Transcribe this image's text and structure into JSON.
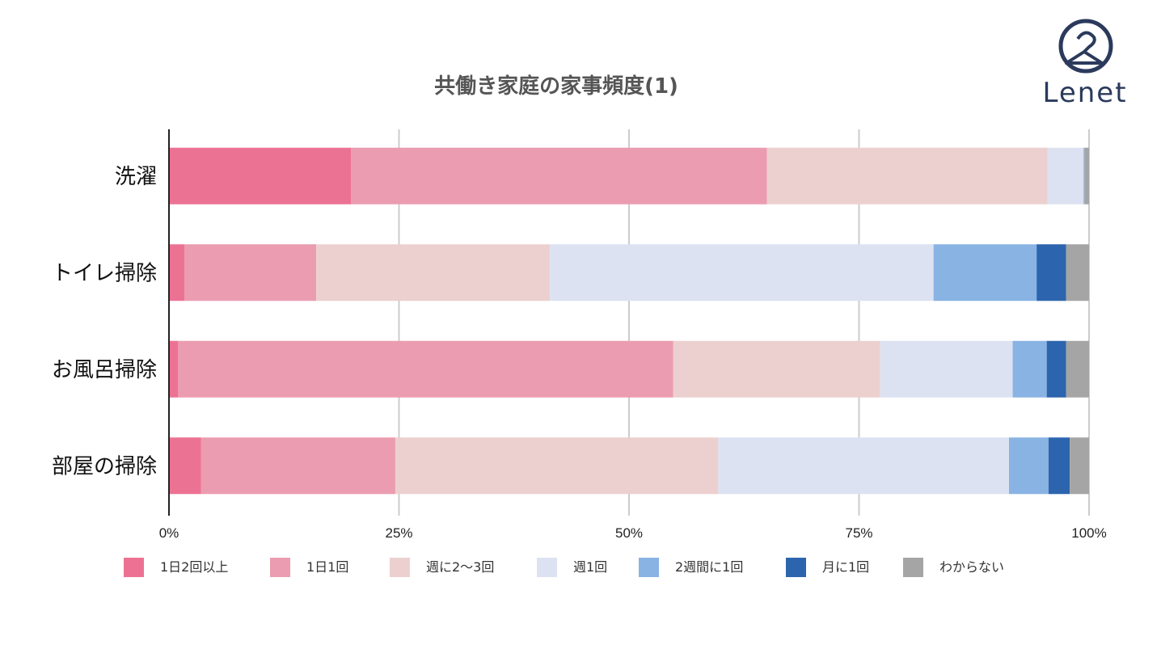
{
  "logo": {
    "text": "Lenet"
  },
  "chart_data": {
    "type": "bar",
    "orientation": "horizontal",
    "stacked": true,
    "title": "共働き家庭の家事頻度(1)",
    "categories": [
      "洗濯",
      "トイレ掃除",
      "お風呂掃除",
      "部屋の掃除"
    ],
    "xlim": [
      0,
      100
    ],
    "xticks": [
      0,
      25,
      50,
      75,
      100
    ],
    "xtick_labels": [
      "0%",
      "25%",
      "50%",
      "75%",
      "100%"
    ],
    "grid": "vertical",
    "legend_position": "bottom",
    "series": [
      {
        "name": "1日2回以上",
        "color": "#ec7293",
        "values": [
          19.8,
          1.7,
          1.0,
          3.5
        ]
      },
      {
        "name": "1日1回",
        "color": "#eb9cb0",
        "values": [
          45.2,
          14.3,
          53.8,
          21.1
        ]
      },
      {
        "name": "週に2〜3回",
        "color": "#ecd0cf",
        "values": [
          30.5,
          25.4,
          22.5,
          35.1
        ]
      },
      {
        "name": "週1回",
        "color": "#dce2f1",
        "values": [
          3.9,
          41.7,
          14.4,
          31.6
        ]
      },
      {
        "name": "2週間に1回",
        "color": "#89b3e3",
        "values": [
          0.1,
          11.2,
          3.7,
          4.3
        ]
      },
      {
        "name": "月に1回",
        "color": "#2c65ae",
        "values": [
          0.0,
          3.2,
          2.1,
          2.3
        ]
      },
      {
        "name": "わからない",
        "color": "#a5a5a5",
        "values": [
          0.5,
          2.5,
          2.5,
          2.1
        ]
      }
    ]
  }
}
